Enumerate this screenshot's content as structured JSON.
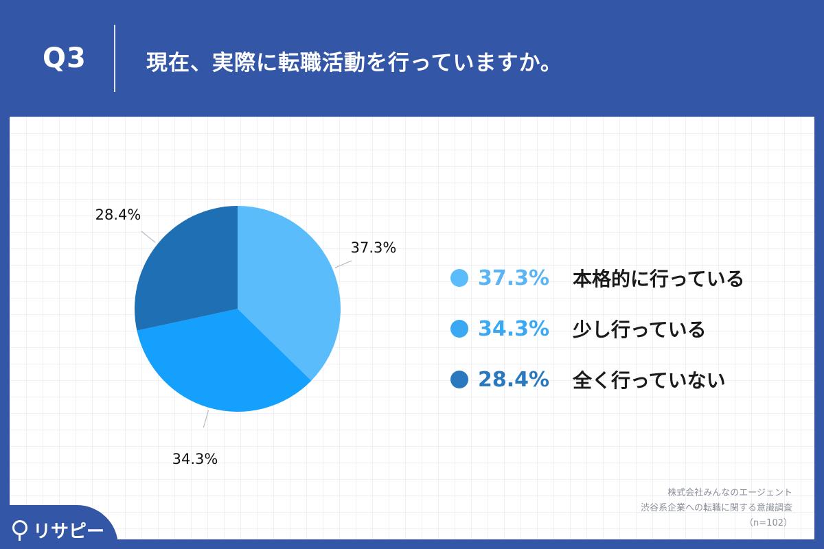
{
  "header": {
    "q_label": "Q3",
    "title": "現在、実際に転職活動を行っていますか。"
  },
  "chart_data": {
    "type": "pie",
    "title": "",
    "categories": [
      "本格的に行っている",
      "少し行っている",
      "全く行っていない"
    ],
    "values": [
      37.3,
      34.3,
      28.4
    ],
    "labels": [
      "37.3%",
      "34.3%",
      "28.4%"
    ],
    "colors": [
      "#5bbcfc",
      "#14a0fc",
      "#1e6fb4"
    ],
    "legend_position": "right"
  },
  "legend": [
    {
      "pct": "37.3%",
      "label": "本格的に行っている",
      "color": "#5bbcfc",
      "text_color": "#5bb4f4"
    },
    {
      "pct": "34.3%",
      "label": "少し行っている",
      "color": "#3ba8f4",
      "text_color": "#3ba8f4"
    },
    {
      "pct": "28.4%",
      "label": "全く行っていない",
      "color": "#2a78bd",
      "text_color": "#2a78bd"
    }
  ],
  "source": {
    "line1": "株式会社みんなのエージェント",
    "line2": "渋谷系企業への転職に関する意識調査",
    "line3": "（n=102）"
  },
  "brand": {
    "name": "リサピー"
  }
}
